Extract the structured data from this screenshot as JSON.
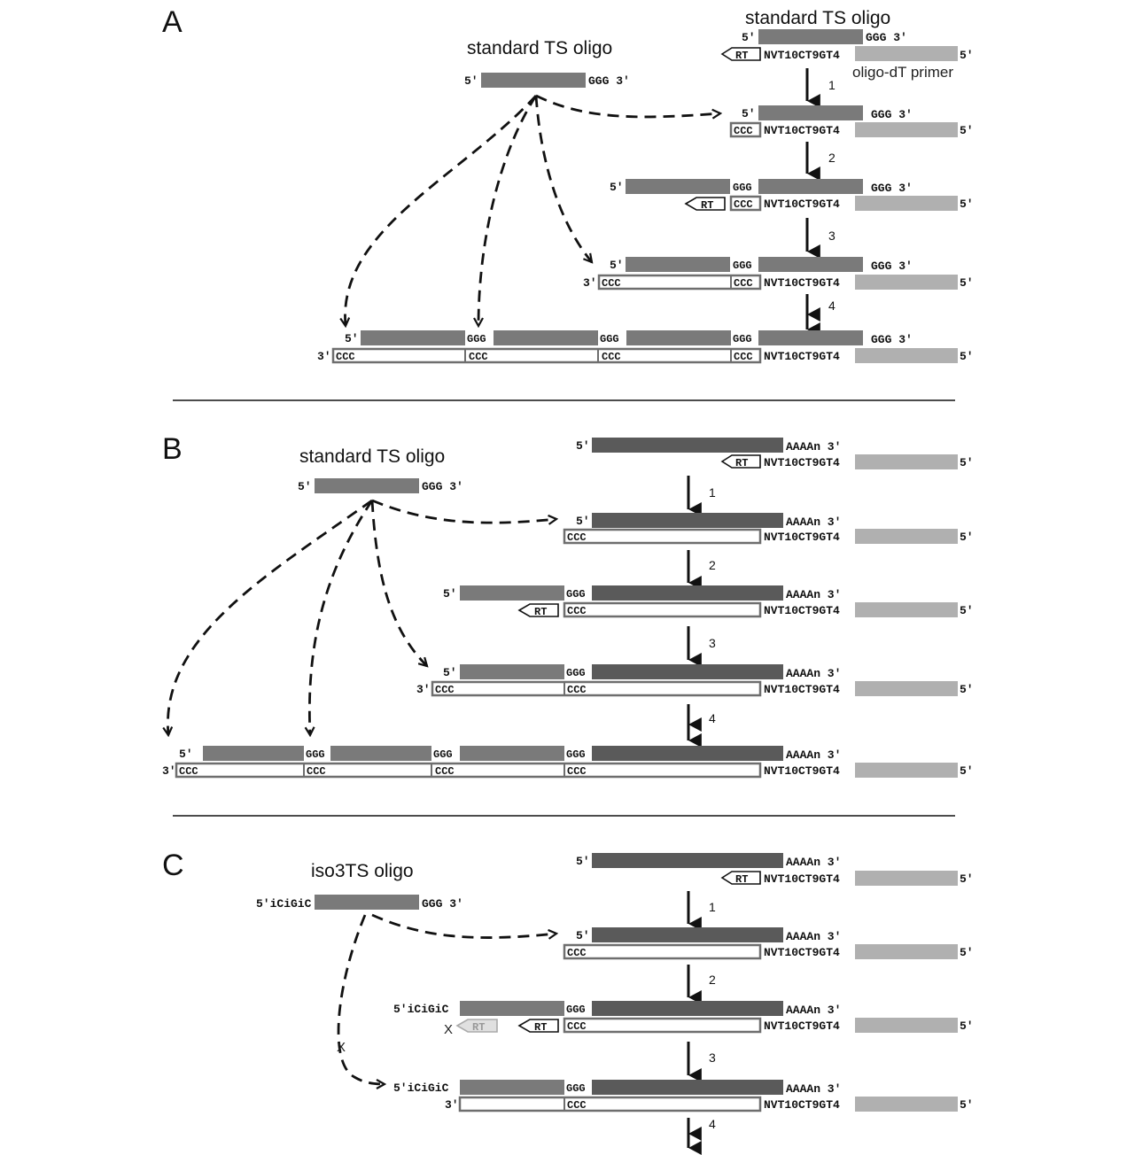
{
  "panels": {
    "a": "A",
    "b": "B",
    "c": "C"
  },
  "labels": {
    "standard_ts_oligo": "standard TS oligo",
    "iso3_ts_oligo": "iso3TS oligo",
    "oligo_dt_primer": "oligo-dT primer",
    "five_prime": "5′",
    "three_prime": "3′",
    "ggg": "GGG",
    "ggg_3": "GGG 3′",
    "ccc": "CCC",
    "rt": "RT",
    "primer_seq": "NVT10CT9GT4",
    "polya": "AAAAn 3′",
    "iso_prefix": "5′iCiGiC",
    "block_x": "X"
  },
  "steps": [
    "1",
    "2",
    "3",
    "4"
  ],
  "colors": {
    "ts_oligo": "#7a7a7a",
    "mrna": "#5a5a5a",
    "primer": "#b0b0b0",
    "cdna_outline": "#6e6e6e",
    "arrow": "#111111"
  }
}
